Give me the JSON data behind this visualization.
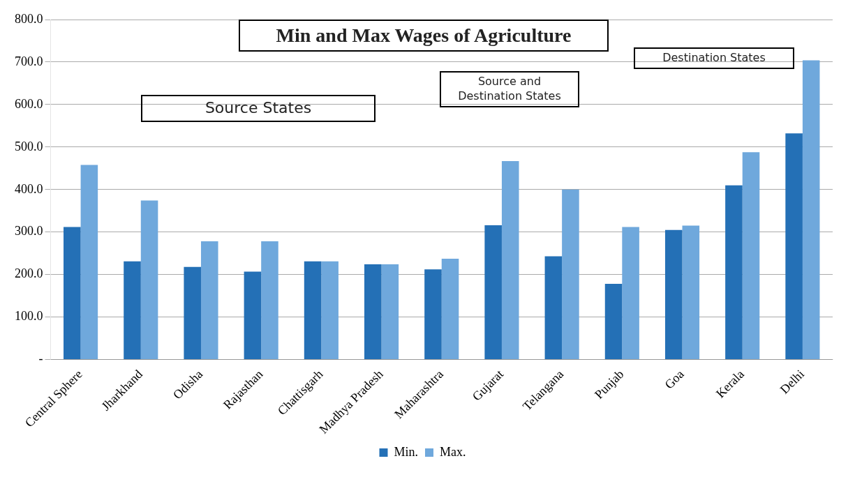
{
  "chart_data": {
    "type": "bar",
    "title": "Min and Max Wages of Agriculture",
    "categories": [
      "Central Sphere",
      "Jharkhand",
      "Odisha",
      "Rajasthan",
      "Chattisgarh",
      "Madhya Pradesh",
      "Maharashtra",
      "Gujarat",
      "Telangana",
      "Punjab",
      "Goa",
      "Kerala",
      "Delhi"
    ],
    "series": [
      {
        "name": "Min.",
        "color": "#2470b6",
        "values": [
          312,
          231,
          218,
          207,
          231,
          224,
          212,
          316,
          243,
          178,
          305,
          410,
          532
        ]
      },
      {
        "name": "Max.",
        "color": "#6fa8dc",
        "values": [
          458,
          374,
          278,
          278,
          231,
          224,
          237,
          467,
          400,
          312,
          315,
          488,
          704
        ]
      }
    ],
    "ylim": [
      0,
      800
    ],
    "yticks": [
      {
        "value": 0,
        "label": "-"
      },
      {
        "value": 100,
        "label": "100.0"
      },
      {
        "value": 200,
        "label": "200.0"
      },
      {
        "value": 300,
        "label": "300.0"
      },
      {
        "value": 400,
        "label": "400.0"
      },
      {
        "value": 500,
        "label": "500.0"
      },
      {
        "value": 600,
        "label": "600.0"
      },
      {
        "value": 700,
        "label": "700.0"
      },
      {
        "value": 800,
        "label": "800.0"
      }
    ],
    "grid": "y",
    "legend": "bottom",
    "annotations": [
      "Source States",
      "Source and Destination States",
      "Destination States"
    ]
  }
}
